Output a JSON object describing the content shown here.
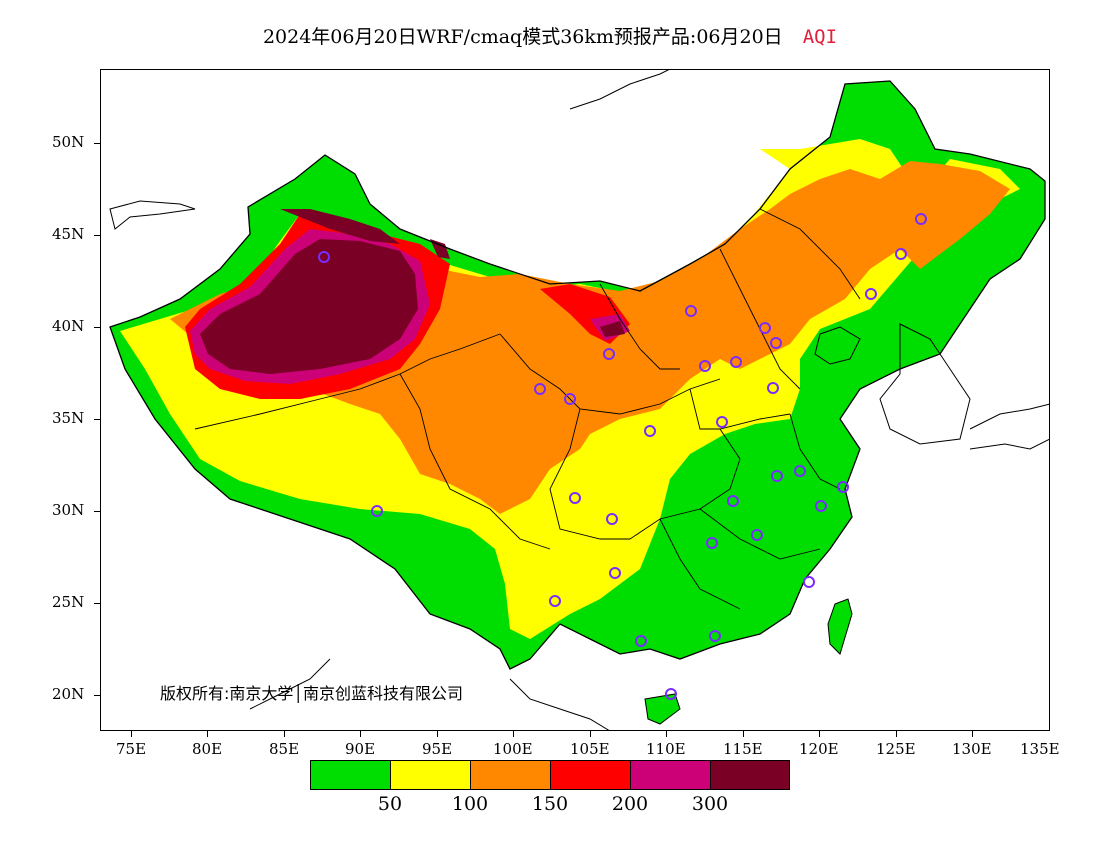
{
  "title": {
    "main": "2024年06月20日WRF/cmaq模式36km预报产品:06月20日",
    "variable": "AQI"
  },
  "lat_labels": [
    "50N",
    "45N",
    "40N",
    "35N",
    "30N",
    "25N",
    "20N"
  ],
  "lon_labels": [
    "75E",
    "80E",
    "85E",
    "90E",
    "95E",
    "100E",
    "105E",
    "110E",
    "115E",
    "120E",
    "125E",
    "130E",
    "135E"
  ],
  "copyright": "版权所有:南京大学│南京创蓝科技有限公司",
  "legend": {
    "colors": [
      "#00dd00",
      "#ffff00",
      "#ff8800",
      "#ff0000",
      "#cc0077",
      "#7a0025"
    ],
    "tick_labels": [
      "50",
      "100",
      "150",
      "200",
      "300"
    ]
  },
  "map_extent": {
    "lon": [
      73,
      135
    ],
    "lat": [
      18,
      54
    ]
  },
  "station_color": "#7a2cff"
}
